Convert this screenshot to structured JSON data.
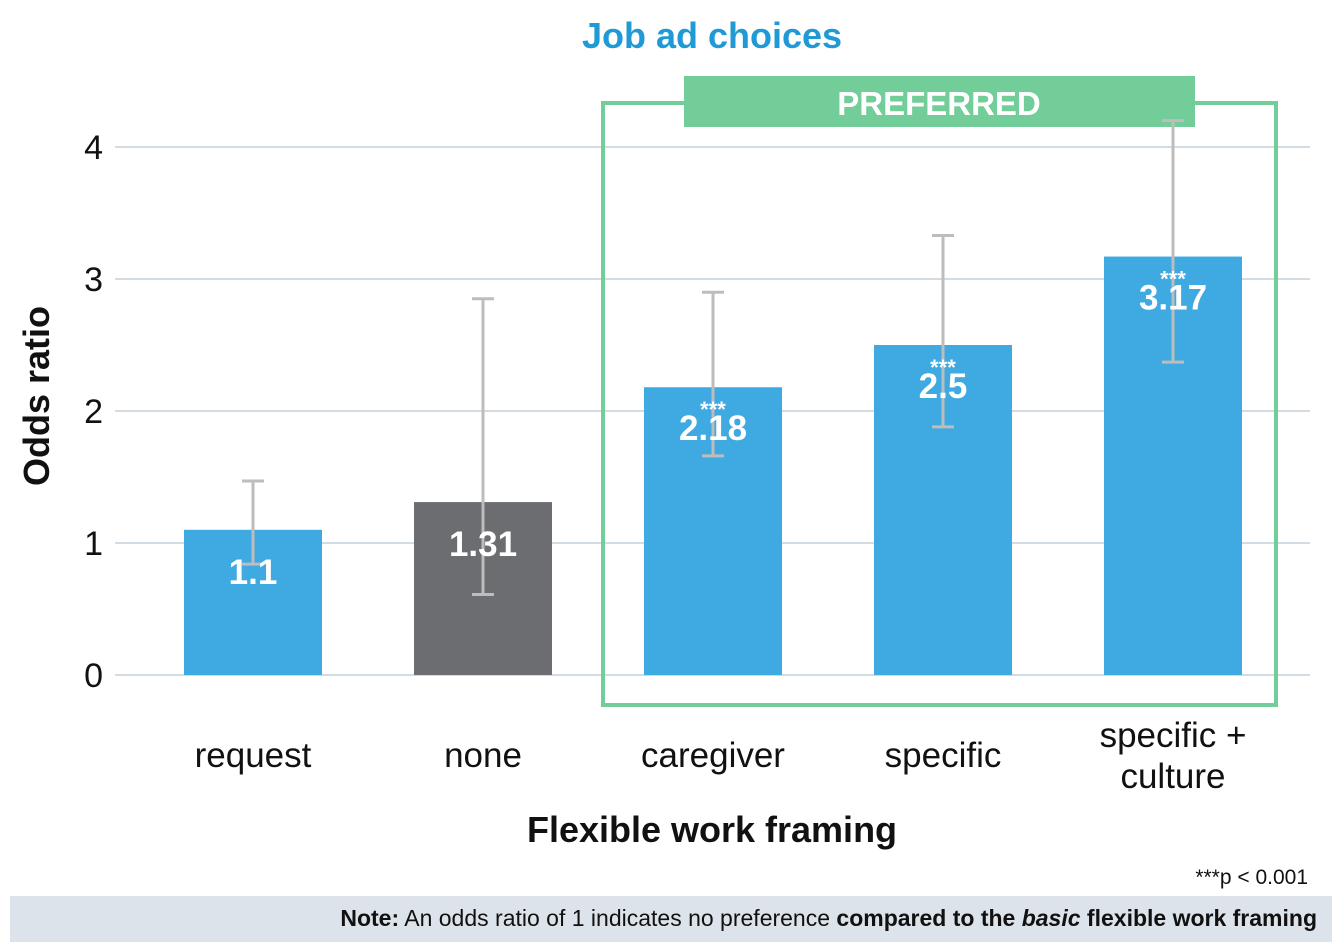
{
  "chart_data": {
    "type": "bar",
    "title": "Job ad choices",
    "xlabel": "Flexible work framing",
    "ylabel": "Odds ratio",
    "ylim": [
      0,
      4.15
    ],
    "yticks": [
      0,
      1,
      2,
      3,
      4
    ],
    "grid": true,
    "categories": [
      [
        "request"
      ],
      [
        "none"
      ],
      [
        "caregiver"
      ],
      [
        "specific"
      ],
      [
        "specific +",
        "culture"
      ]
    ],
    "values": [
      1.1,
      1.31,
      2.18,
      2.5,
      3.17
    ],
    "value_labels": [
      "1.1",
      "1.31",
      "2.18",
      "2.5",
      "3.17"
    ],
    "error_low": [
      0.84,
      0.61,
      1.66,
      1.88,
      2.37
    ],
    "error_high": [
      1.47,
      2.85,
      2.9,
      3.33,
      4.2
    ],
    "significance": [
      "",
      "",
      "***",
      "***",
      "***"
    ],
    "bar_colors": [
      "#3fa9e1",
      "#6b6d71",
      "#3fa9e1",
      "#3fa9e1",
      "#3fa9e1"
    ],
    "error_bar_color": "#bdbdbd",
    "title_color": "#1f9ad6",
    "preferred_group": {
      "label": "PREFERRED",
      "categories": [
        "caregiver",
        "specific",
        "specific + culture"
      ],
      "color": "#72cd99"
    }
  },
  "footnote": "***p < 0.001",
  "note": {
    "lead": "Note:",
    "text": " An odds ratio of 1 indicates no preference ",
    "bold1": "compared to the ",
    "italic": "basic",
    "bold2": " flexible work framing"
  }
}
